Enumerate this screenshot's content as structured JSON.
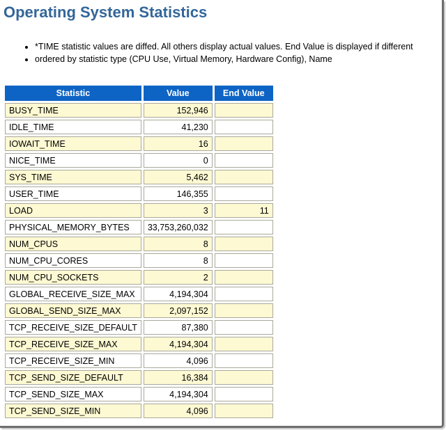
{
  "page": {
    "title": "Operating System Statistics",
    "notes": [
      "*TIME statistic values are diffed. All others display actual values. End Value is displayed if different",
      "ordered by statistic type (CPU Use, Virtual Memory, Hardware Config), Name"
    ]
  },
  "colors": {
    "header_bg": "#0e64c4",
    "header_text": "#ffffff",
    "row_alt_bg": "#fdf9d2",
    "row_bg": "#ffffff",
    "title_color": "#336699",
    "cell_border": "#a9a89c",
    "frame_border": "#6e6e6e"
  },
  "table": {
    "columns": [
      "Statistic",
      "Value",
      "End Value"
    ],
    "rows": [
      {
        "statistic": "BUSY_TIME",
        "value": "152,946",
        "end_value": ""
      },
      {
        "statistic": "IDLE_TIME",
        "value": "41,230",
        "end_value": ""
      },
      {
        "statistic": "IOWAIT_TIME",
        "value": "16",
        "end_value": ""
      },
      {
        "statistic": "NICE_TIME",
        "value": "0",
        "end_value": ""
      },
      {
        "statistic": "SYS_TIME",
        "value": "5,462",
        "end_value": ""
      },
      {
        "statistic": "USER_TIME",
        "value": "146,355",
        "end_value": ""
      },
      {
        "statistic": "LOAD",
        "value": "3",
        "end_value": "11"
      },
      {
        "statistic": "PHYSICAL_MEMORY_BYTES",
        "value": "33,753,260,032",
        "end_value": ""
      },
      {
        "statistic": "NUM_CPUS",
        "value": "8",
        "end_value": ""
      },
      {
        "statistic": "NUM_CPU_CORES",
        "value": "8",
        "end_value": ""
      },
      {
        "statistic": "NUM_CPU_SOCKETS",
        "value": "2",
        "end_value": ""
      },
      {
        "statistic": "GLOBAL_RECEIVE_SIZE_MAX",
        "value": "4,194,304",
        "end_value": ""
      },
      {
        "statistic": "GLOBAL_SEND_SIZE_MAX",
        "value": "2,097,152",
        "end_value": ""
      },
      {
        "statistic": "TCP_RECEIVE_SIZE_DEFAULT",
        "value": "87,380",
        "end_value": ""
      },
      {
        "statistic": "TCP_RECEIVE_SIZE_MAX",
        "value": "4,194,304",
        "end_value": ""
      },
      {
        "statistic": "TCP_RECEIVE_SIZE_MIN",
        "value": "4,096",
        "end_value": ""
      },
      {
        "statistic": "TCP_SEND_SIZE_DEFAULT",
        "value": "16,384",
        "end_value": ""
      },
      {
        "statistic": "TCP_SEND_SIZE_MAX",
        "value": "4,194,304",
        "end_value": ""
      },
      {
        "statistic": "TCP_SEND_SIZE_MIN",
        "value": "4,096",
        "end_value": ""
      }
    ]
  }
}
